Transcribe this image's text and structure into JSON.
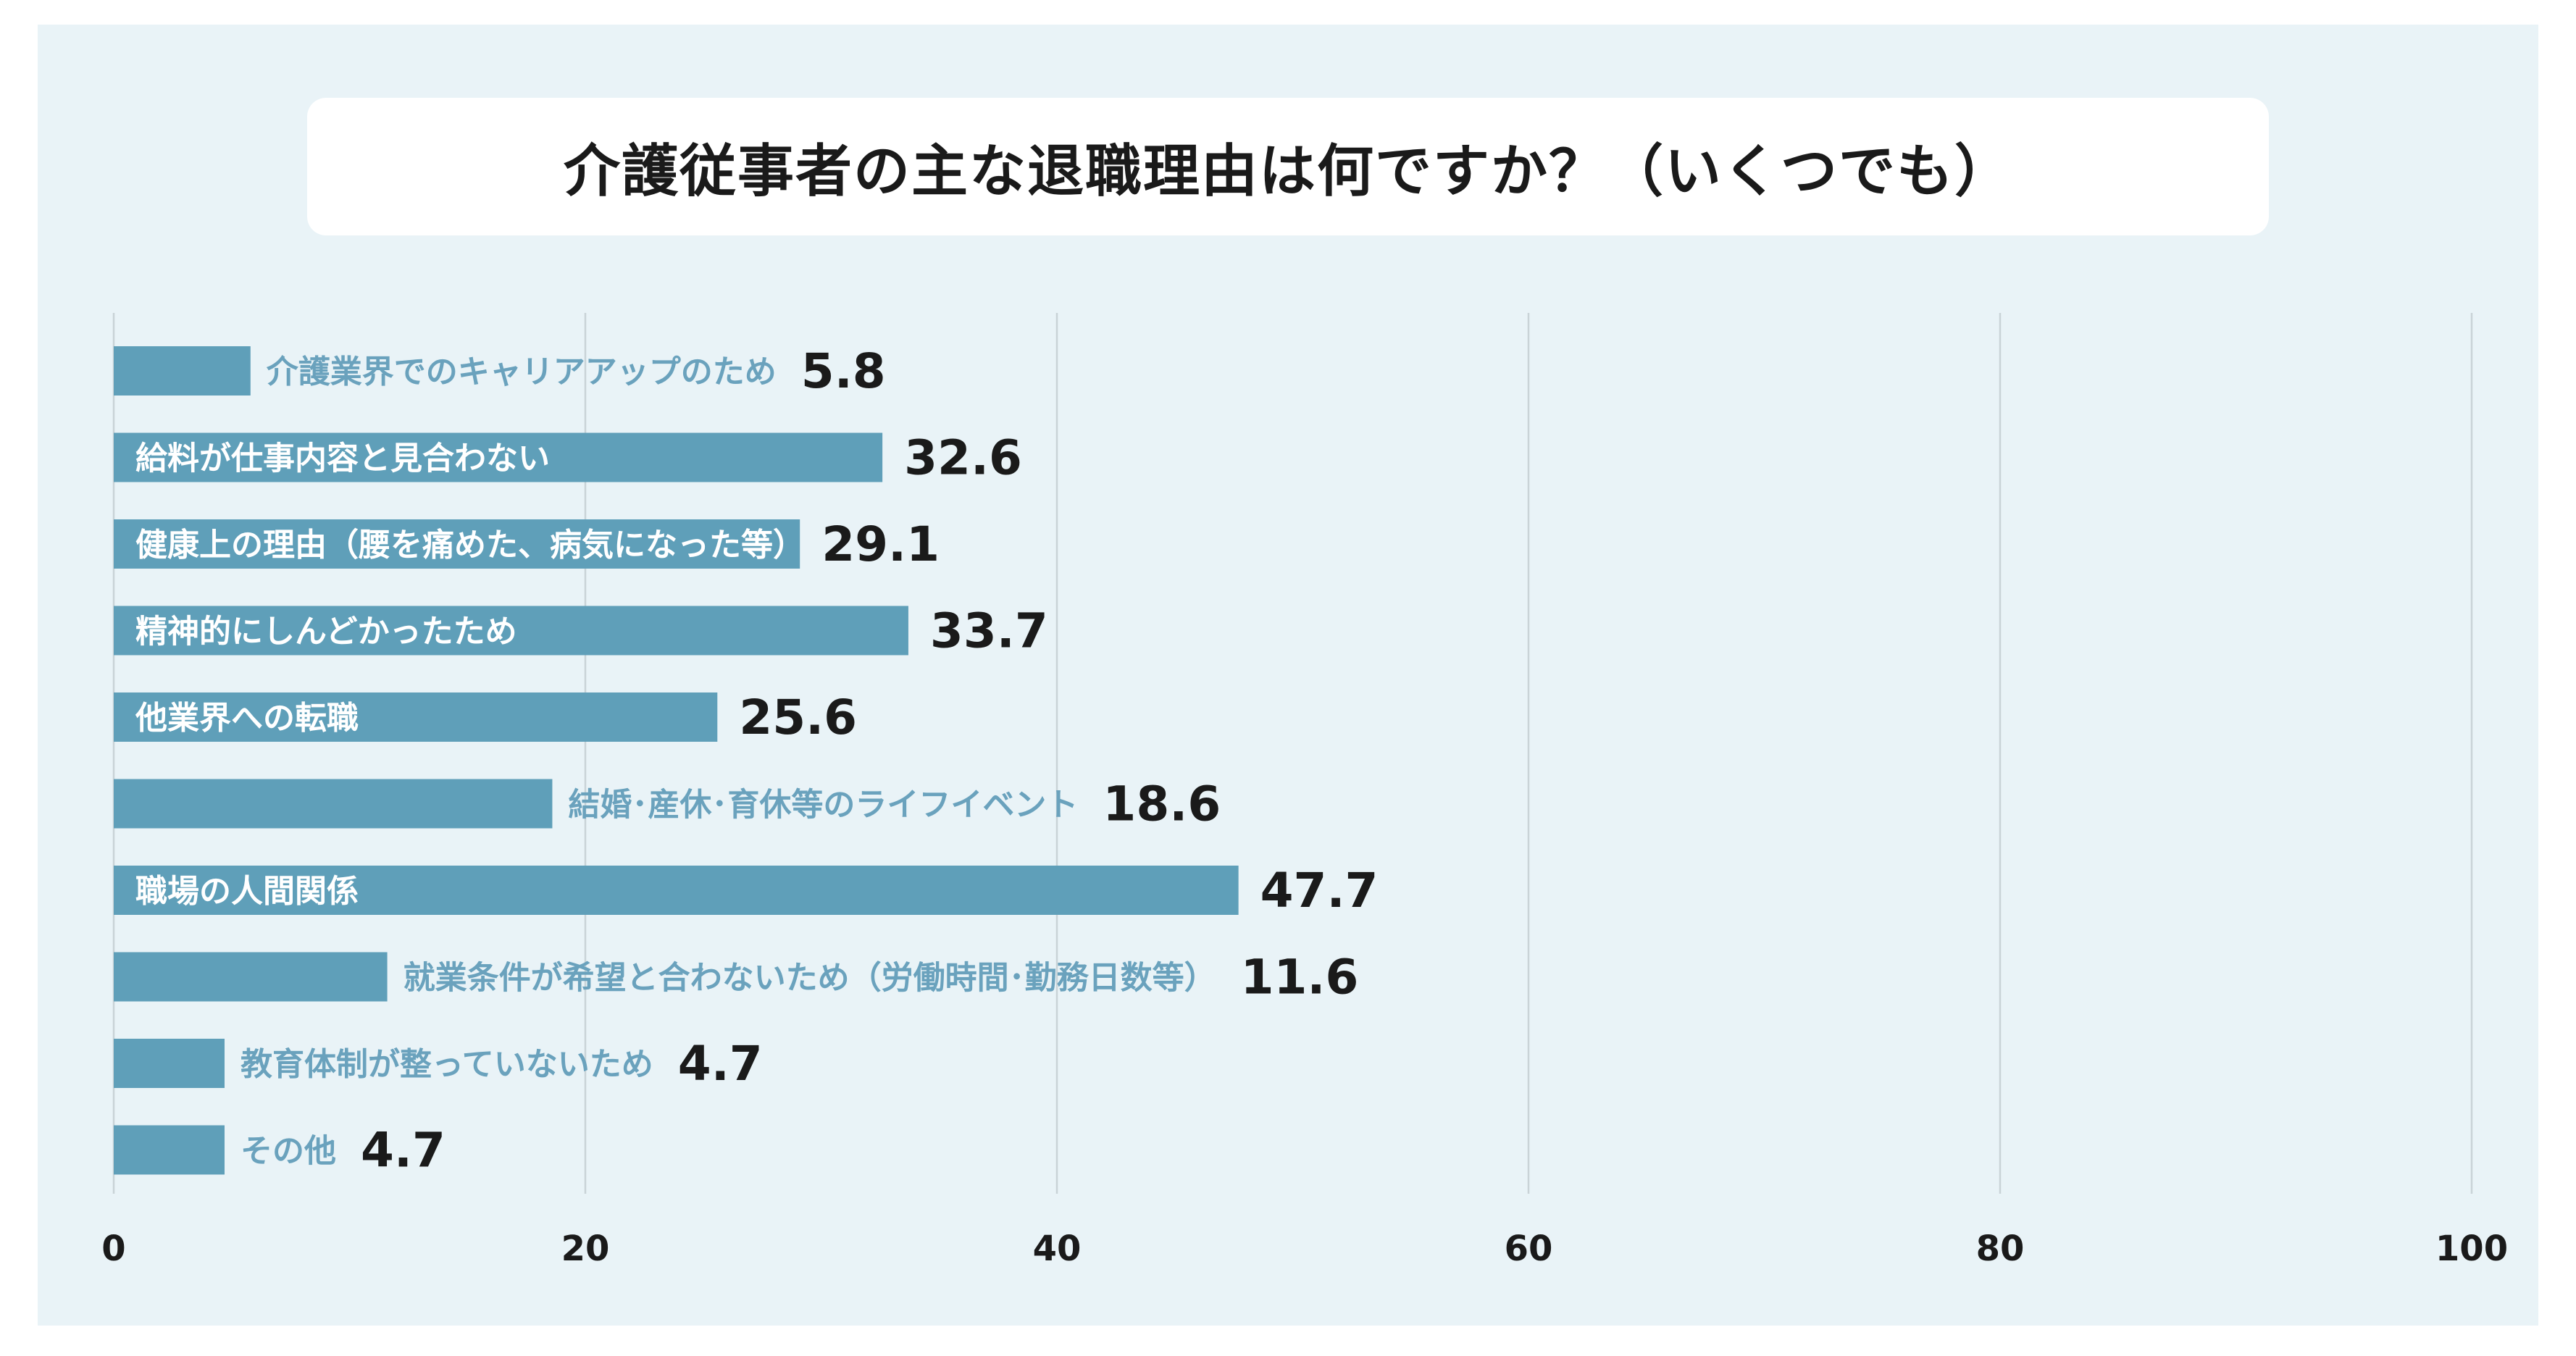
{
  "chart_data": {
    "type": "bar",
    "orientation": "horizontal",
    "title": "介護従事者の主な退職理由は何ですか？（いくつでも）",
    "categories": [
      "介護業界でのキャリアアップのため",
      "給料が仕事内容と見合わない",
      "健康上の理由（腰を痛めた、病気になった等）",
      "精神的にしんどかったため",
      "他業界への転職",
      "結婚･産休･育休等のライフイベント",
      "職場の人間関係",
      "就業条件が希望と合わないため（労働時間･勤務日数等）",
      "教育体制が整っていないため",
      "その他"
    ],
    "values": [
      5.8,
      32.6,
      29.1,
      33.7,
      25.6,
      18.6,
      47.7,
      11.6,
      4.7,
      4.7
    ],
    "value_labels": [
      "5.8",
      "32.6",
      "29.1",
      "33.7",
      "25.6",
      "18.6",
      "47.7",
      "11.6",
      "4.7",
      "4.7"
    ],
    "label_inside": [
      false,
      true,
      true,
      true,
      true,
      false,
      true,
      false,
      false,
      false
    ],
    "xlim": [
      0,
      100
    ],
    "xticks": [
      0,
      20,
      40,
      60,
      80,
      100
    ],
    "xtick_labels": [
      "0",
      "20",
      "40",
      "60",
      "80",
      "100"
    ],
    "grid": true,
    "legend": "none",
    "colors": {
      "bar": "#5f9fb9",
      "label_outside": "#6aa2bd",
      "label_inside": "#ffffff",
      "background": "#e9f3f7"
    }
  }
}
